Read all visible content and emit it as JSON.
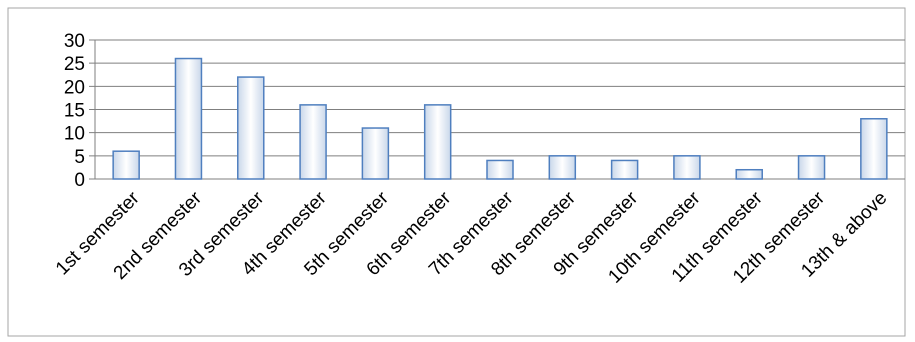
{
  "chart_data": {
    "type": "bar",
    "title": "",
    "xlabel": "",
    "ylabel": "",
    "categories": [
      "1st semester",
      "2nd semester",
      "3rd semester",
      "4th semester",
      "5th semester",
      "6th semester",
      "7th semester",
      "8th semester",
      "9th semester",
      "10th semester",
      "11th semester",
      "12th semester",
      "13th & above"
    ],
    "values": [
      6,
      26,
      22,
      16,
      11,
      16,
      4,
      5,
      4,
      5,
      2,
      5,
      13
    ],
    "ylim": [
      0,
      30
    ],
    "yticks": [
      0,
      5,
      10,
      15,
      20,
      25,
      30
    ],
    "grid": true,
    "legend": "none",
    "colors": {
      "bar_fill_edge": "#c9d7ea",
      "bar_fill_center": "#ffffff",
      "bar_stroke": "#4f7fbf",
      "grid": "#7f7f7f",
      "border": "#a6a6a6"
    }
  }
}
